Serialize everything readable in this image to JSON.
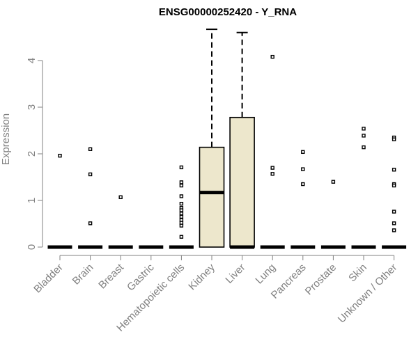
{
  "chart_data": {
    "type": "boxplot",
    "title": "ENSG00000252420 - Y_RNA",
    "xlabel": "",
    "ylabel": "Expression",
    "ylim": [
      0,
      4.6
    ],
    "yticks": [
      "0",
      "1",
      "2",
      "3",
      "4"
    ],
    "grid": false,
    "box_fill": "#ede7cc",
    "categories": [
      "Bladder",
      "Brain",
      "Breast",
      "Gastric",
      "Hematopoietic cells",
      "Kidney",
      "Liver",
      "Lung",
      "Pancreas",
      "Prostate",
      "Skin",
      "Unknown / Other"
    ],
    "boxes": [
      {
        "category": "Bladder",
        "min": 0,
        "q1": 0,
        "median": 0,
        "q3": 0,
        "max": 0,
        "outliers": [
          1.96
        ]
      },
      {
        "category": "Brain",
        "min": 0,
        "q1": 0,
        "median": 0,
        "q3": 0,
        "max": 0,
        "outliers": [
          2.1,
          1.56,
          0.51
        ]
      },
      {
        "category": "Breast",
        "min": 0,
        "q1": 0,
        "median": 0,
        "q3": 0,
        "max": 0,
        "outliers": [
          1.07
        ]
      },
      {
        "category": "Gastric",
        "min": 0,
        "q1": 0,
        "median": 0,
        "q3": 0,
        "max": 0,
        "outliers": []
      },
      {
        "category": "Hematopoietic cells",
        "min": 0,
        "q1": 0,
        "median": 0,
        "q3": 0,
        "max": 0,
        "outliers": [
          1.71,
          1.39,
          1.32,
          1.09,
          0.93,
          0.84,
          0.79,
          0.72,
          0.65,
          0.58,
          0.52,
          0.46,
          0.22
        ]
      },
      {
        "category": "Kidney",
        "min": 0,
        "q1": 0,
        "median": 1.17,
        "q3": 2.14,
        "max": 4.67,
        "outliers": []
      },
      {
        "category": "Liver",
        "min": 0,
        "q1": 0,
        "median": 0,
        "q3": 2.78,
        "max": 4.6,
        "outliers": []
      },
      {
        "category": "Lung",
        "min": 0,
        "q1": 0,
        "median": 0,
        "q3": 0,
        "max": 0,
        "outliers": [
          4.08,
          1.7,
          1.57
        ]
      },
      {
        "category": "Pancreas",
        "min": 0,
        "q1": 0,
        "median": 0,
        "q3": 0,
        "max": 0,
        "outliers": [
          2.04,
          1.67,
          1.35
        ]
      },
      {
        "category": "Prostate",
        "min": 0,
        "q1": 0,
        "median": 0,
        "q3": 0,
        "max": 0,
        "outliers": [
          1.4
        ]
      },
      {
        "category": "Skin",
        "min": 0,
        "q1": 0,
        "median": 0,
        "q3": 0,
        "max": 0,
        "outliers": [
          2.54,
          2.39,
          2.14
        ]
      },
      {
        "category": "Unknown / Other",
        "min": 0,
        "q1": 0,
        "median": 0,
        "q3": 0,
        "max": 0,
        "outliers": [
          2.35,
          2.31,
          1.66,
          1.35,
          1.32,
          0.76,
          0.51,
          0.36
        ]
      }
    ]
  }
}
